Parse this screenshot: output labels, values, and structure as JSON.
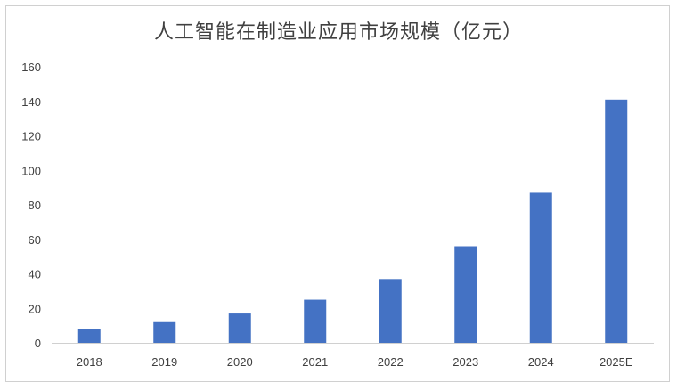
{
  "chart_data": {
    "type": "bar",
    "title": "人工智能在制造业应用市场规模（亿元）",
    "xlabel": "",
    "ylabel": "",
    "categories": [
      "2018",
      "2019",
      "2020",
      "2021",
      "2022",
      "2023",
      "2024",
      "2025E"
    ],
    "values": [
      8,
      12,
      17,
      25,
      37,
      56,
      87,
      141
    ],
    "ylim": [
      0,
      160
    ],
    "yticks": [
      "0",
      "20",
      "40",
      "60",
      "80",
      "100",
      "120",
      "140",
      "160"
    ],
    "grid": false,
    "legend": "none",
    "bar_color": "#4472C4"
  }
}
